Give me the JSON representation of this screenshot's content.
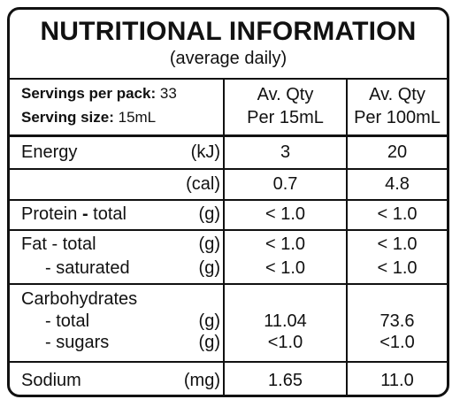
{
  "title": "NUTRITIONAL INFORMATION",
  "subtitle": "(average daily)",
  "servings": {
    "per_pack_label": "Servings per pack:",
    "per_pack_value": "33",
    "size_label": "Serving size:",
    "size_value": "15mL"
  },
  "columns": [
    {
      "line1": "Av. Qty",
      "line2": "Per 15mL"
    },
    {
      "line1": "Av. Qty",
      "line2": "Per 100mL"
    }
  ],
  "rows": {
    "energy": {
      "label": "Energy",
      "unit_kj": "(kJ)",
      "kj": [
        "3",
        "20"
      ],
      "unit_cal": "(cal)",
      "cal": [
        "0.7",
        "4.8"
      ]
    },
    "protein": {
      "label": "Protein",
      "sep": "-",
      "sub": "total",
      "unit": "(g)",
      "values": [
        "< 1.0",
        "< 1.0"
      ]
    },
    "fat": {
      "label": "Fat",
      "sep": "-",
      "sub": "total",
      "unit": "(g)",
      "values": [
        "< 1.0",
        "< 1.0"
      ],
      "sat_label": "- saturated",
      "sat_unit": "(g)",
      "sat_values": [
        "< 1.0",
        "< 1.0"
      ]
    },
    "carbs": {
      "label": "Carbohydrates",
      "total_label": "- total",
      "total_unit": "(g)",
      "total_values": [
        "11.04",
        "73.6"
      ],
      "sugars_label": "- sugars",
      "sugars_unit": "(g)",
      "sugars_values": [
        "<1.0",
        "<1.0"
      ]
    },
    "sodium": {
      "label": "Sodium",
      "unit": "(mg)",
      "values": [
        "1.65",
        "11.0"
      ]
    }
  }
}
